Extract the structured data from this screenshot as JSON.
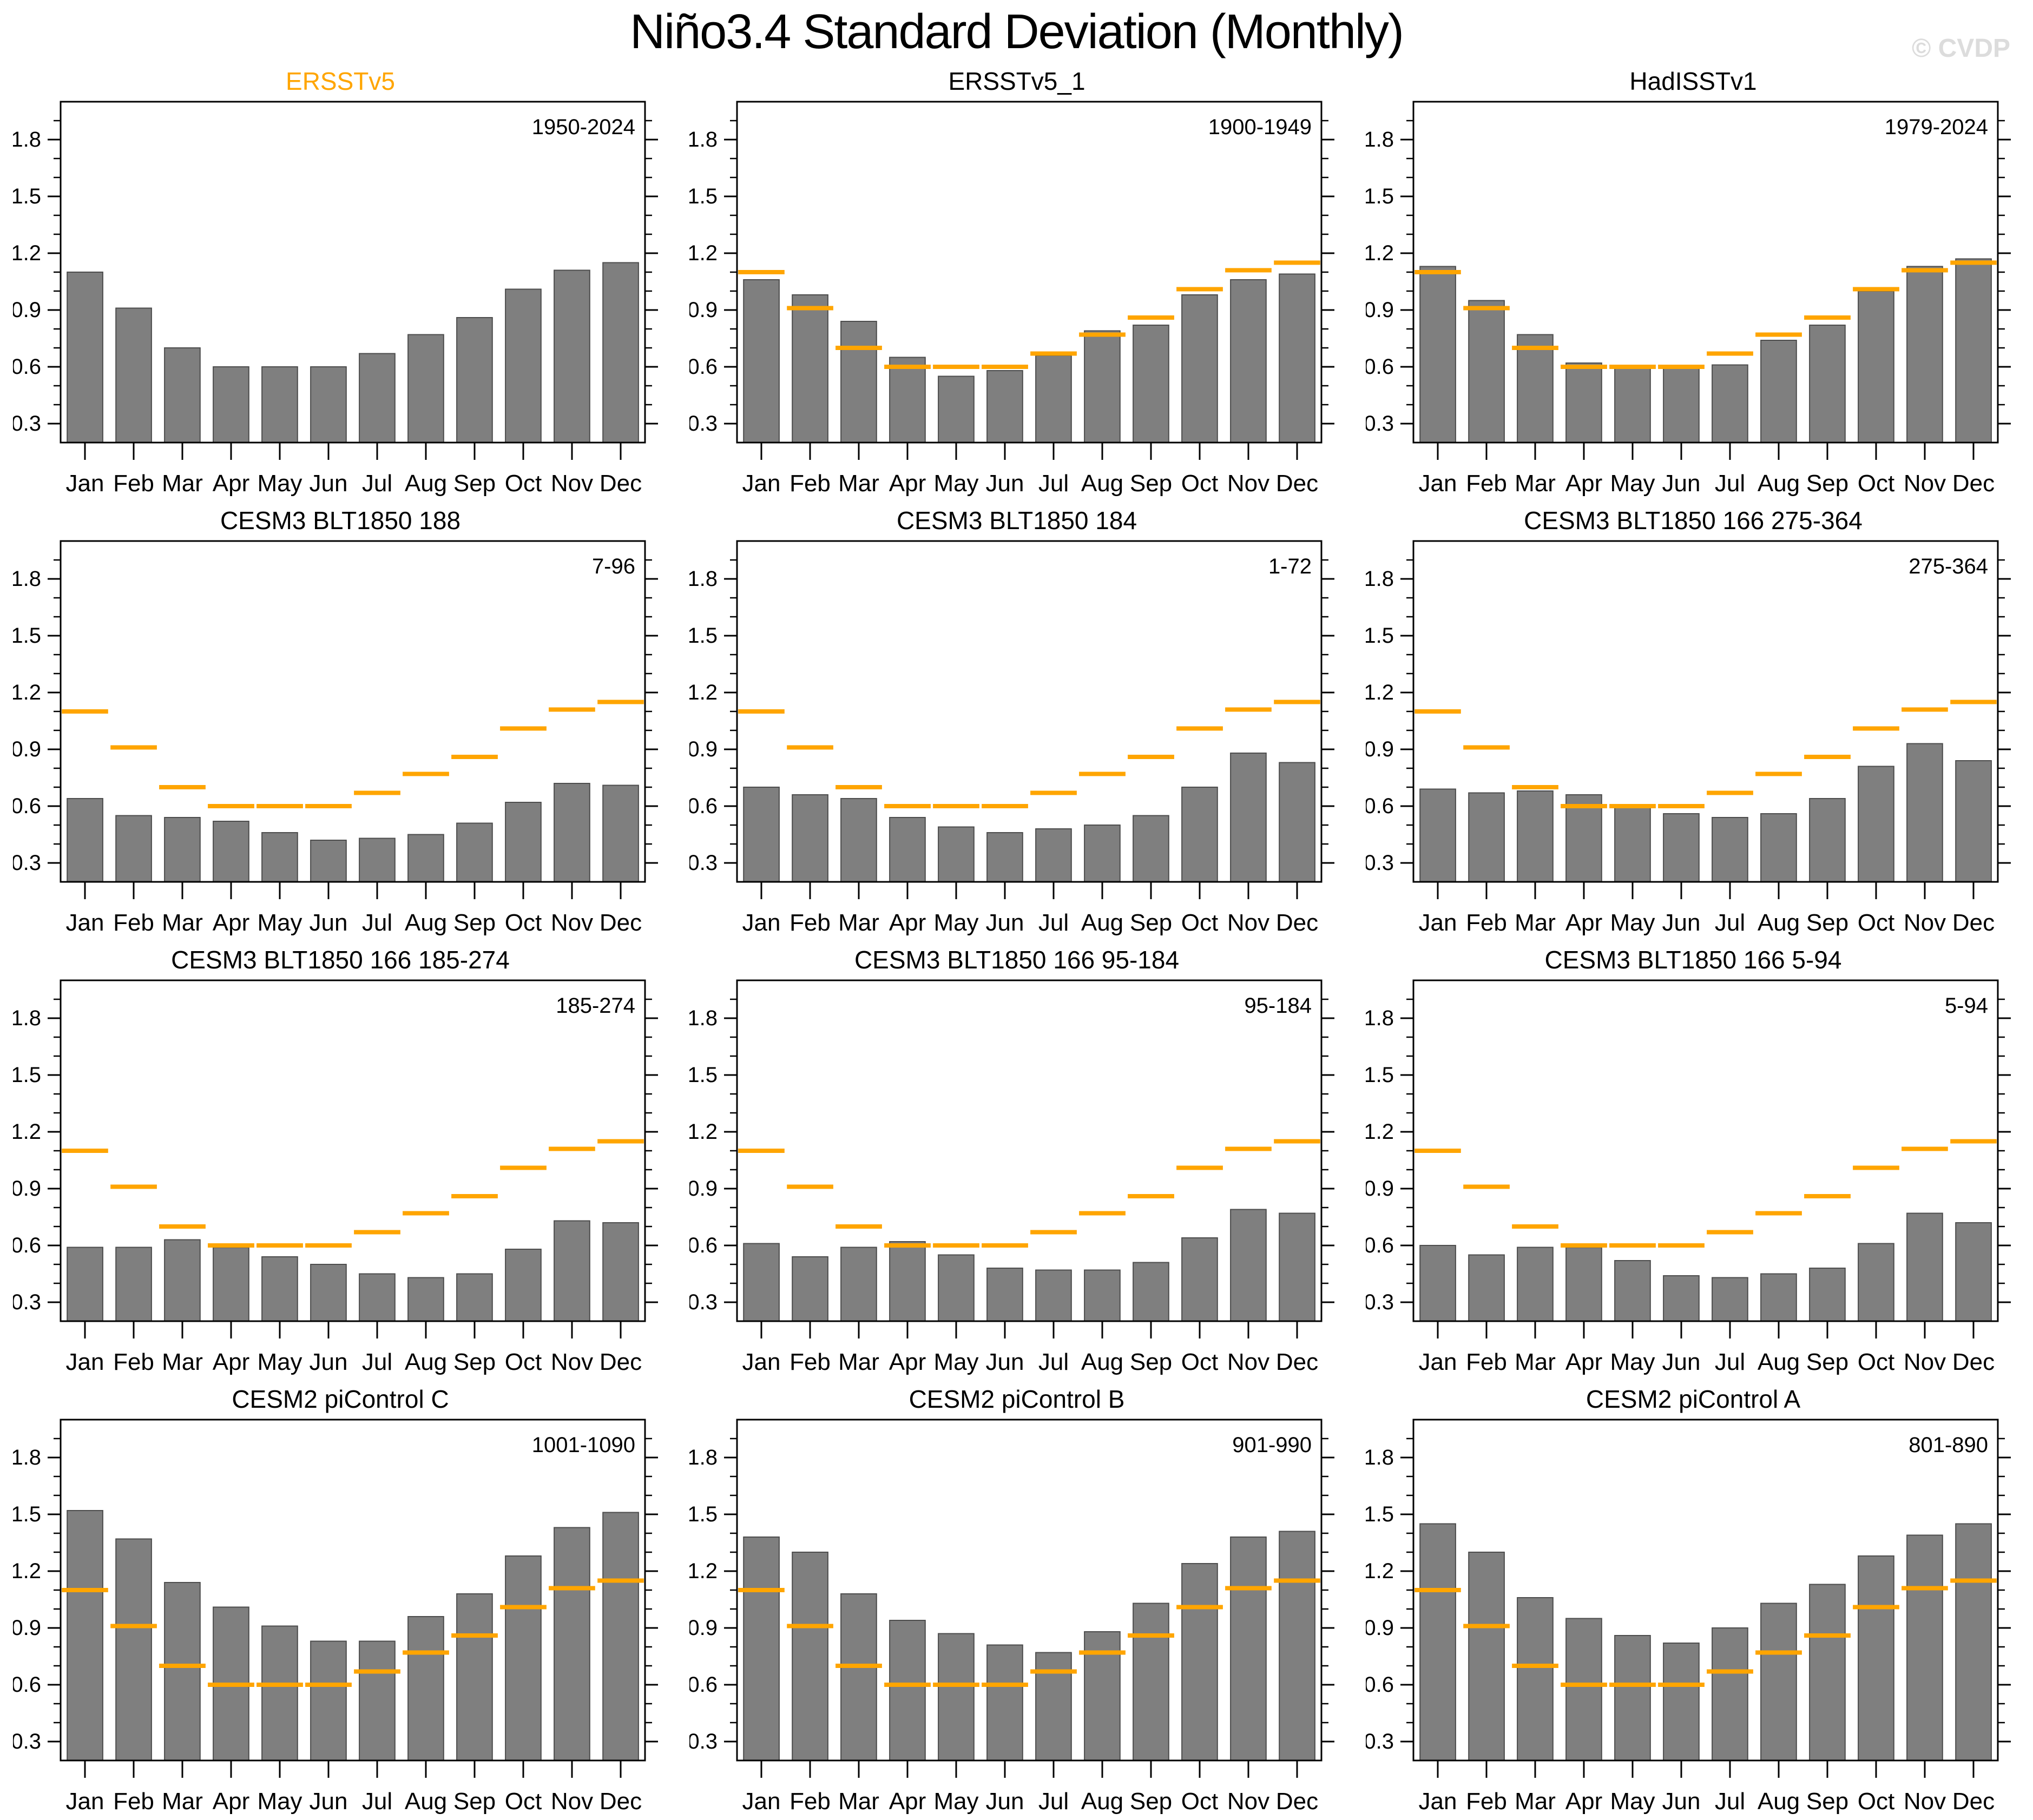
{
  "page": {
    "title": "Niño3.4 Standard Deviation (Monthly)",
    "watermark": "© CVDP"
  },
  "colors": {
    "bar": "#7f7f7f",
    "bar_edge": "#4d4d4d",
    "reference": "#ffa500",
    "highlight_title": "#ffa500",
    "axis": "#000000",
    "watermark": "#dcdcdc"
  },
  "months": [
    "Jan",
    "Feb",
    "Mar",
    "Apr",
    "May",
    "Jun",
    "Jul",
    "Aug",
    "Sep",
    "Oct",
    "Nov",
    "Dec"
  ],
  "y_axis": {
    "min": 0.2,
    "max": 2.0,
    "major_ticks": [
      0.3,
      0.6,
      0.9,
      1.2,
      1.5,
      1.8
    ],
    "minor_step": 0.1,
    "grid": false
  },
  "reference_line": {
    "source": "ERSSTv5",
    "values": [
      1.1,
      0.91,
      0.7,
      0.6,
      0.6,
      0.6,
      0.67,
      0.77,
      0.86,
      1.01,
      1.11,
      1.15
    ]
  },
  "chart_data": [
    {
      "type": "bar",
      "title": "ERSSTv5",
      "period": "1950-2024",
      "title_highlighted": true,
      "show_reference": false,
      "values": [
        1.1,
        0.91,
        0.7,
        0.6,
        0.6,
        0.6,
        0.67,
        0.77,
        0.86,
        1.01,
        1.11,
        1.15
      ]
    },
    {
      "type": "bar",
      "title": "ERSSTv5_1",
      "period": "1900-1949",
      "title_highlighted": false,
      "show_reference": true,
      "values": [
        1.06,
        0.98,
        0.84,
        0.65,
        0.55,
        0.58,
        0.66,
        0.79,
        0.82,
        0.98,
        1.06,
        1.09
      ]
    },
    {
      "type": "bar",
      "title": "HadISSTv1",
      "period": "1979-2024",
      "title_highlighted": false,
      "show_reference": true,
      "values": [
        1.13,
        0.95,
        0.77,
        0.62,
        0.6,
        0.6,
        0.61,
        0.74,
        0.82,
        1.0,
        1.13,
        1.17
      ]
    },
    {
      "type": "bar",
      "title": "CESM3 BLT1850 188",
      "period": "7-96",
      "title_highlighted": false,
      "show_reference": true,
      "values": [
        0.64,
        0.55,
        0.54,
        0.52,
        0.46,
        0.42,
        0.43,
        0.45,
        0.51,
        0.62,
        0.72,
        0.71
      ]
    },
    {
      "type": "bar",
      "title": "CESM3 BLT1850 184",
      "period": "1-72",
      "title_highlighted": false,
      "show_reference": true,
      "values": [
        0.7,
        0.66,
        0.64,
        0.54,
        0.49,
        0.46,
        0.48,
        0.5,
        0.55,
        0.7,
        0.88,
        0.83
      ]
    },
    {
      "type": "bar",
      "title": "CESM3 BLT1850 166 275-364",
      "period": "275-364",
      "title_highlighted": false,
      "show_reference": true,
      "values": [
        0.69,
        0.67,
        0.68,
        0.66,
        0.6,
        0.56,
        0.54,
        0.56,
        0.64,
        0.81,
        0.93,
        0.84
      ]
    },
    {
      "type": "bar",
      "title": "CESM3 BLT1850 166 185-274",
      "period": "185-274",
      "title_highlighted": false,
      "show_reference": true,
      "values": [
        0.59,
        0.59,
        0.63,
        0.59,
        0.54,
        0.5,
        0.45,
        0.43,
        0.45,
        0.58,
        0.73,
        0.72
      ]
    },
    {
      "type": "bar",
      "title": "CESM3 BLT1850 166 95-184",
      "period": "95-184",
      "title_highlighted": false,
      "show_reference": true,
      "values": [
        0.61,
        0.54,
        0.59,
        0.62,
        0.55,
        0.48,
        0.47,
        0.47,
        0.51,
        0.64,
        0.79,
        0.77
      ]
    },
    {
      "type": "bar",
      "title": "CESM3 BLT1850 166 5-94",
      "period": "5-94",
      "title_highlighted": false,
      "show_reference": true,
      "values": [
        0.6,
        0.55,
        0.59,
        0.59,
        0.52,
        0.44,
        0.43,
        0.45,
        0.48,
        0.61,
        0.77,
        0.72
      ]
    },
    {
      "type": "bar",
      "title": "CESM2 piControl C",
      "period": "1001-1090",
      "title_highlighted": false,
      "show_reference": true,
      "values": [
        1.52,
        1.37,
        1.14,
        1.01,
        0.91,
        0.83,
        0.83,
        0.96,
        1.08,
        1.28,
        1.43,
        1.51
      ]
    },
    {
      "type": "bar",
      "title": "CESM2 piControl B",
      "period": "901-990",
      "title_highlighted": false,
      "show_reference": true,
      "values": [
        1.38,
        1.3,
        1.08,
        0.94,
        0.87,
        0.81,
        0.77,
        0.88,
        1.03,
        1.24,
        1.38,
        1.41
      ]
    },
    {
      "type": "bar",
      "title": "CESM2 piControl A",
      "period": "801-890",
      "title_highlighted": false,
      "show_reference": true,
      "values": [
        1.45,
        1.3,
        1.06,
        0.95,
        0.86,
        0.82,
        0.9,
        1.03,
        1.13,
        1.28,
        1.39,
        1.45
      ]
    }
  ]
}
